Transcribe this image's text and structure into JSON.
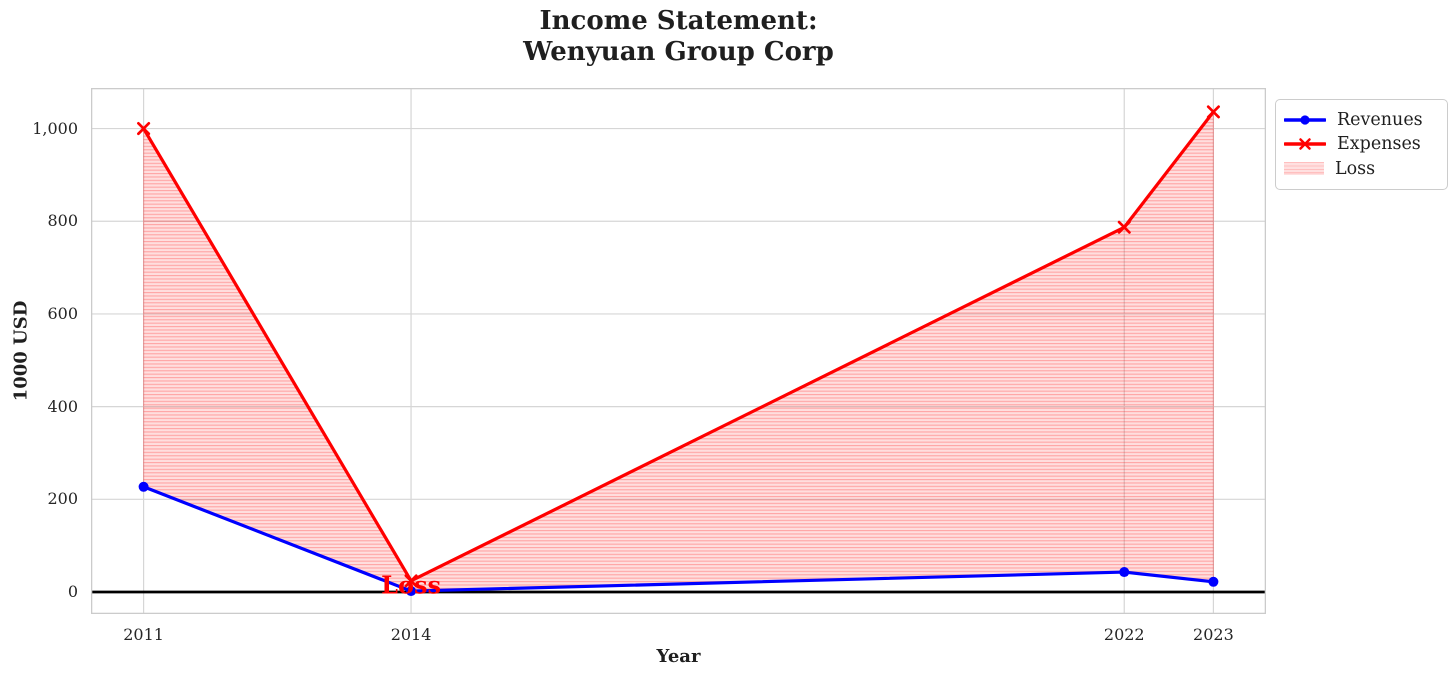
{
  "title": "Income Statement:\nWenyuan Group Corp",
  "chart_data": {
    "type": "line",
    "title": "Income Statement: Wenyuan Group Corp",
    "xlabel": "Year",
    "ylabel": "1000 USD",
    "x": [
      2011,
      2014,
      2022,
      2023
    ],
    "series": [
      {
        "name": "Revenues",
        "color": "#0000ff",
        "marker": "circle",
        "values": [
          227,
          2,
          43,
          22
        ]
      },
      {
        "name": "Expenses",
        "color": "#ff0000",
        "marker": "x",
        "values": [
          1000,
          24,
          787,
          1036
        ]
      }
    ],
    "loss_fill": {
      "label": "Loss",
      "between": [
        "Expenses",
        "Revenues"
      ],
      "fill_color": "rgba(255,0,0,0.13)",
      "hatch_color": "rgba(255,0,0,0.25)",
      "hatch": "horizontal-lines"
    },
    "annotation": {
      "text": "Loss",
      "x": 2014,
      "y": 15,
      "color": "#ff0000"
    },
    "xlim": [
      2010.41,
      2023.59
    ],
    "ylim": [
      -47.5,
      1087.5
    ],
    "xticks": [
      2011,
      2014,
      2022,
      2023
    ],
    "xtick_labels": [
      "2011",
      "2014",
      "2022",
      "2023"
    ],
    "yticks": [
      0,
      200,
      400,
      600,
      800,
      1000
    ],
    "ytick_labels": [
      "0",
      "200",
      "400",
      "600",
      "800",
      "1,000"
    ],
    "grid": true,
    "zero_line_y": 0,
    "legend_position": "upper right outside"
  },
  "legend": {
    "entries": [
      "Revenues",
      "Expenses",
      "Loss"
    ]
  },
  "colors": {
    "revenues": "#0000ff",
    "expenses": "#ff0000",
    "grid": "#d6d6d6",
    "spine": "#cbcbcb",
    "zero_line": "#000000",
    "text": "#262626",
    "background": "#ffffff"
  }
}
